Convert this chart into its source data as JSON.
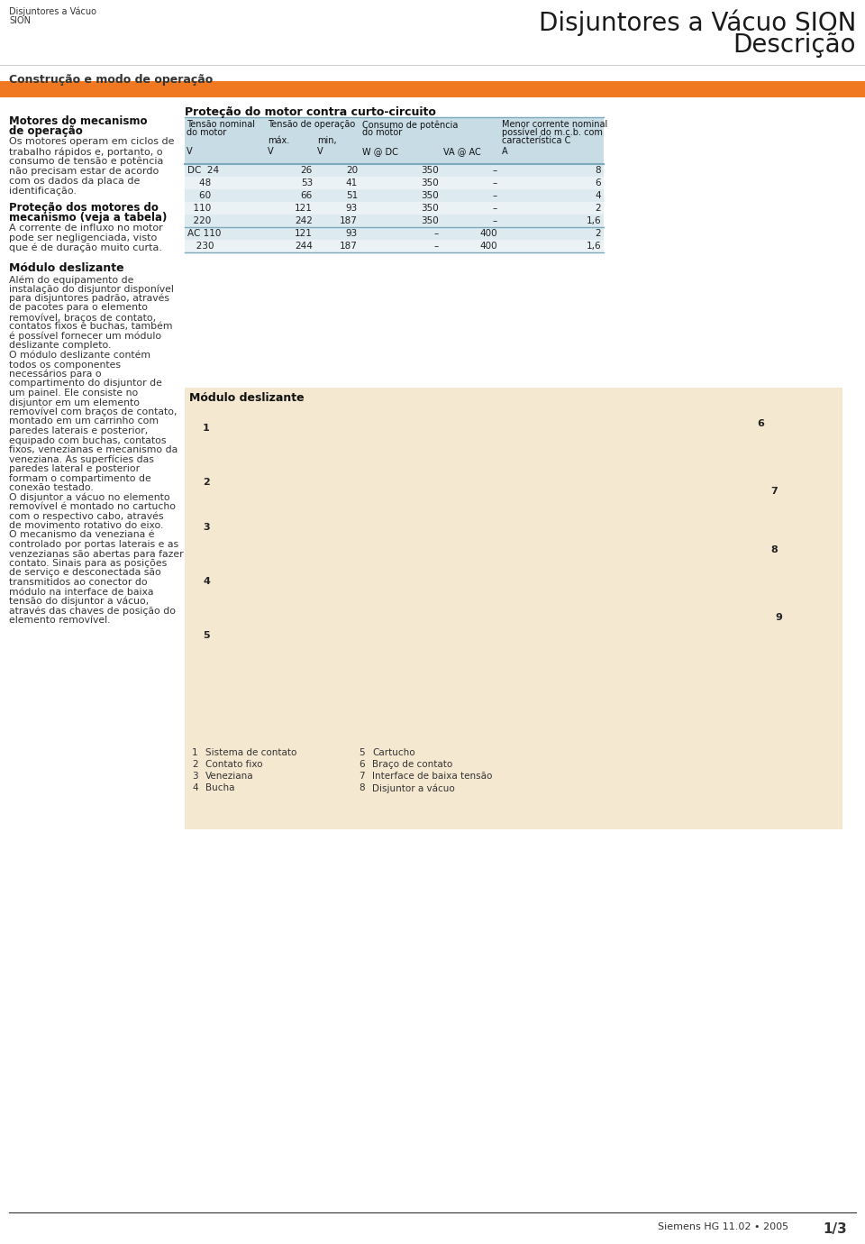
{
  "page_bg": "#ffffff",
  "header_text_left_line1": "Disjuntores a Vácuo",
  "header_text_left_line2": "SION",
  "header_title_line1": "Disjuntores a Vácuo SION",
  "header_title_line2": "Descrição",
  "orange_bar_color": "#f07820",
  "section_title": "Construção e modo de operação",
  "left_col_bold1": "Motores do mecanismo",
  "left_col_bold1b": "de operação",
  "left_col_p1": "Os motores operam em ciclos de\ntrabalho rápidos e, portanto, o\nconsumo de tensão e potência\nnão precisam estar de acordo\ncom os dados da placa de\nidentificação.",
  "left_col_bold2": "Proteção dos motores do\nmecanismo (veja a tabela)",
  "left_col_p2": "A corrente de influxo no motor\npode ser negligenciada, visto\nque é de duração muito curta.",
  "left_col_bold3": "Módulo deslizante",
  "left_col_p3": "Além do equipamento de\ninstalação do disjuntor disponível\npara disjuntores padrão, através\nde pacotes para o elemento\nremovível, braços de contato,\ncontatos fixos e buchas, também\né possível fornecer um módulo\ndeslizante completo.\nO módulo deslizante contém\ntodos os componentes\nnecessários para o\ncompartimento do disjuntor de\num painel. Ele consiste no\ndisjuntor em um elemento\nremovível com braços de contato,\nmontado em um carrinho com\nparedes laterais e posterior,\nequipado com buchas, contatos\nfixos, venezianas e mecanismo da\nveneziana. As superfícies das\nparedes lateral e posterior\nformam o compartimento de\nconexão testado.\nO disjuntor a vácuo no elemento\nremovível é montado no cartucho\ncom o respectivo cabo, através\nde movimento rotativo do eixo.\nO mecanismo da veneziana é\ncontrolado por portas laterais e as\nvenzezianas são abertas para fazer\ncontato. Sinais para as posições\nde serviço e desconectada são\ntransmitidos ao conector do\nmódulo na interface de baixa\ntensão do disjuntor a vácuo,\natravés das chaves de posição do\nelemento removível.",
  "table_title": "Proteção do motor contra curto-circuito",
  "table_header_bg": "#c8dce6",
  "table_row_bg1": "#ddeaf0",
  "table_row_bg2": "#eaf2f5",
  "table_separator_color": "#7aaabb",
  "table_col_headers": [
    "Tensão nominal\ndo motor\nV",
    "Tensão de operação\nmáx.\nV",
    "min.\nV",
    "Consumo de potência\ndo motor\nW @ DC",
    "VA @ AC",
    "Menor corrente nominal\npossível do m.c.b. com\ncaracterística C\nA"
  ],
  "table_dc_rows": [
    [
      "DC  24",
      "26",
      "20",
      "350",
      "–",
      "8"
    ],
    [
      "    48",
      "53",
      "41",
      "350",
      "–",
      "6"
    ],
    [
      "    60",
      "66",
      "51",
      "350",
      "–",
      "4"
    ],
    [
      "  110",
      "121",
      "93",
      "350",
      "–",
      "2"
    ],
    [
      "  220",
      "242",
      "187",
      "350",
      "–",
      "1,6"
    ]
  ],
  "table_ac_rows": [
    [
      "AC 110",
      "121",
      "93",
      "–",
      "400",
      "2"
    ],
    [
      "   230",
      "244",
      "187",
      "–",
      "400",
      "1,6"
    ]
  ],
  "image_caption_title": "Módulo deslizante",
  "image_labels": [
    [
      "1",
      "Sistema de contato"
    ],
    [
      "2",
      "Contato fixo"
    ],
    [
      "3",
      "Veneziana"
    ],
    [
      "4",
      "Bucha"
    ],
    [
      "5",
      "Cartucho"
    ],
    [
      "6",
      "Braço de contato"
    ],
    [
      "7",
      "Interface de baixa tensão"
    ],
    [
      "8",
      "Disjuntor a vácuo"
    ]
  ],
  "footer_text": "Siemens HG 11.02 • 2005",
  "footer_page": "1/3",
  "image_bg": "#f5e8d0"
}
